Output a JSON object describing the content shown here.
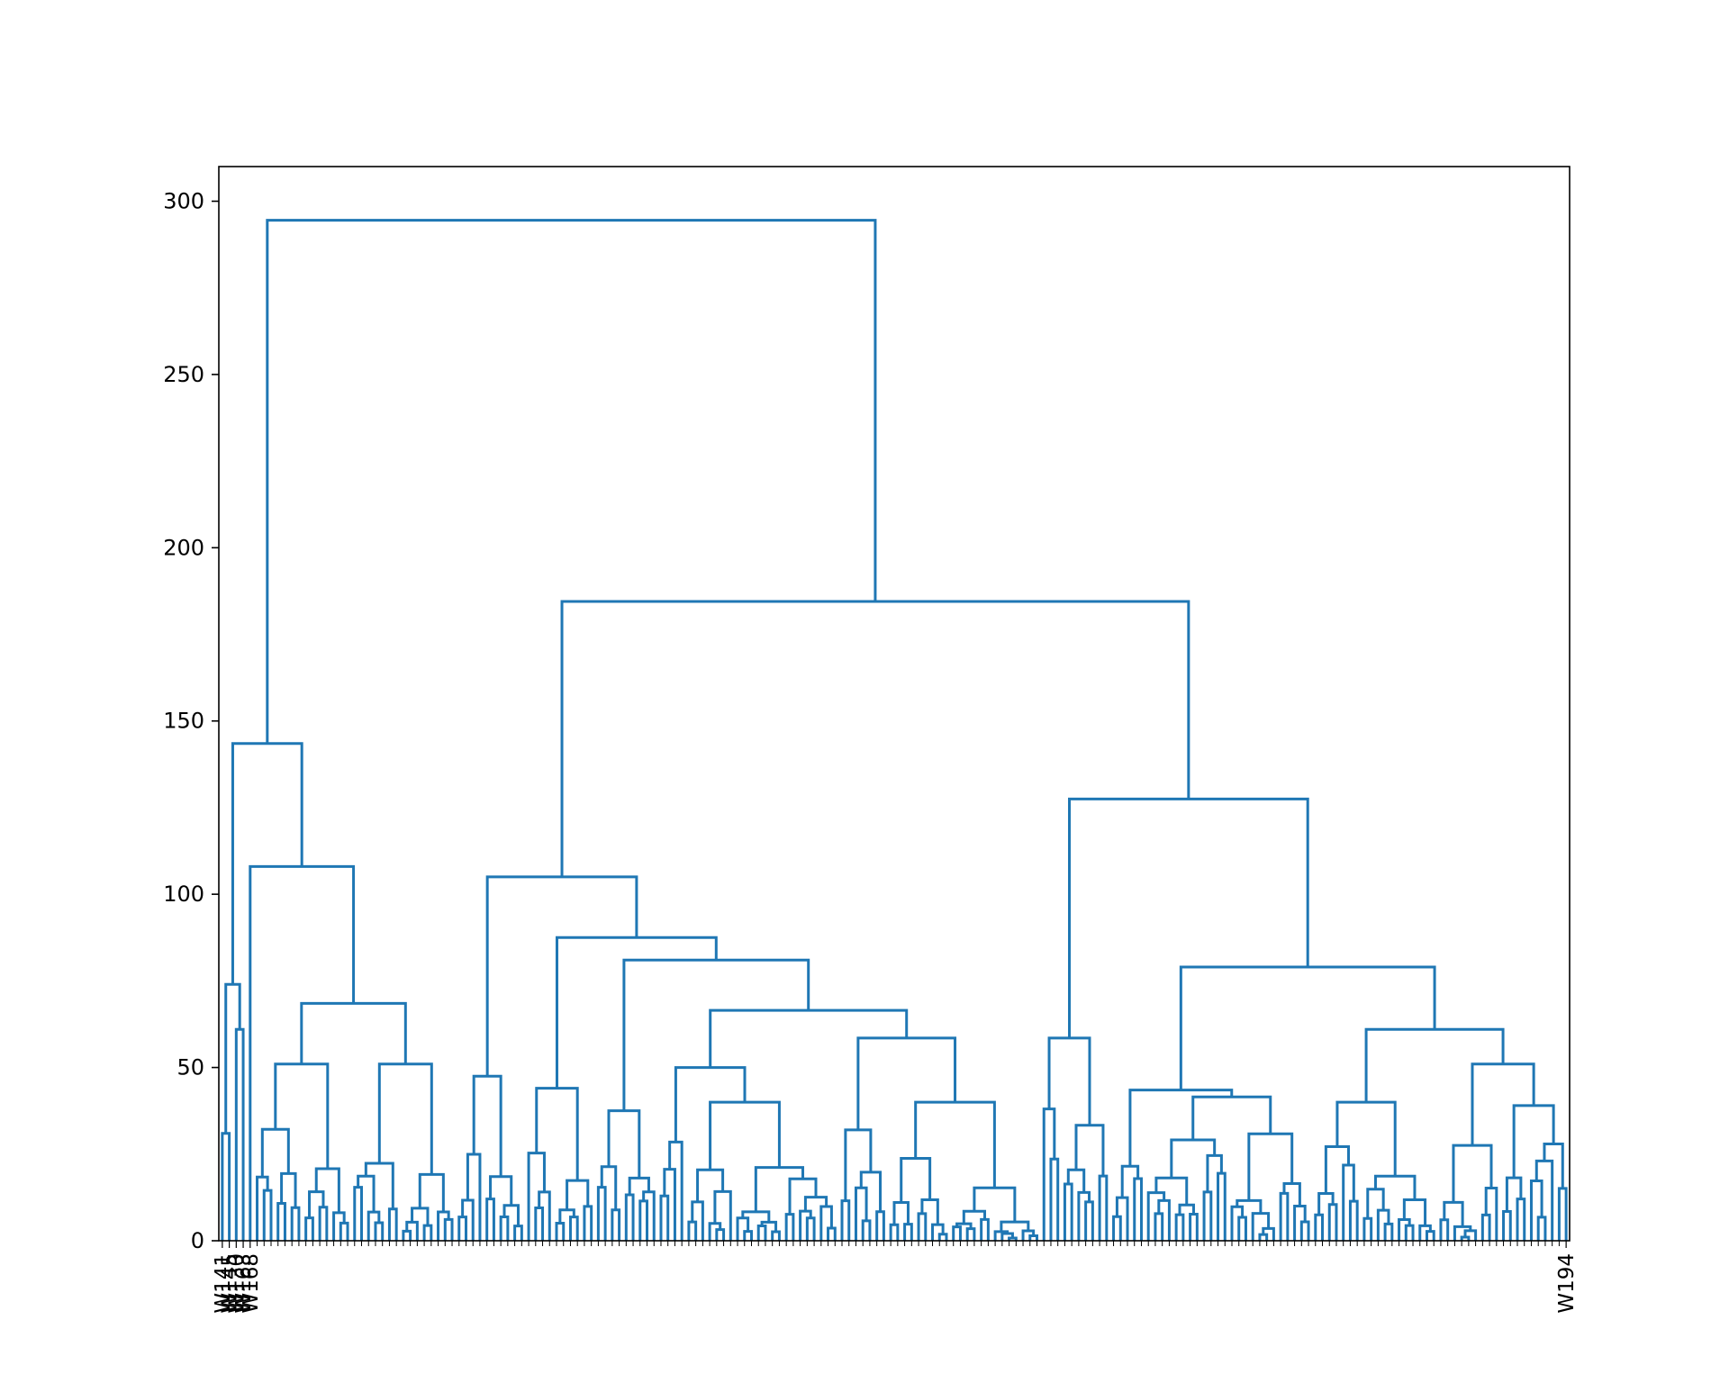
{
  "chart_data": {
    "type": "dendrogram",
    "title": "",
    "xlabel": "",
    "ylabel": "",
    "ylim": [
      0,
      310
    ],
    "y_ticks": [
      0,
      50,
      100,
      150,
      200,
      250,
      300
    ],
    "y_tick_labels": [
      "0",
      "50",
      "100",
      "150",
      "200",
      "250",
      "300"
    ],
    "grid": false,
    "legend": "none",
    "link_color": "#1f77b4",
    "leaf_count": 194,
    "leaf_labels_visible": [
      "W141",
      "W145",
      "W130",
      "W163",
      "W168",
      "W194"
    ],
    "merges": [
      {
        "left": "A",
        "right": "B",
        "height": 294.5
      },
      {
        "left": "A1",
        "right": "A2",
        "height": 143.5
      },
      {
        "left": "A1a",
        "right": "A1b",
        "height": 74
      },
      {
        "left": "A1a-leaf",
        "right": "A1a-leaf2",
        "height": 31
      },
      {
        "left": "A1b-leaf",
        "right": "A1b-leaf2",
        "height": 61
      },
      {
        "left": "A2a",
        "right": "A2b",
        "height": 108
      },
      {
        "left": "A2b1",
        "right": "A2b2",
        "height": 68.5
      },
      {
        "left": "A2b1a",
        "right": "A2b1b",
        "height": 51
      },
      {
        "left": "A2b2a",
        "right": "A2b2b",
        "height": 51
      },
      {
        "left": "B1",
        "right": "B2",
        "height": 184.5
      },
      {
        "left": "B1a",
        "right": "B1b",
        "height": 105
      },
      {
        "left": "B1a-l",
        "right": "B1a-r",
        "height": 47.5
      },
      {
        "left": "B1b1",
        "right": "B1b2",
        "height": 87.5
      },
      {
        "left": "B1b1a",
        "right": "B1b1b",
        "height": 44
      },
      {
        "left": "B1b2a",
        "right": "B1b2b",
        "height": 81
      },
      {
        "left": "B1b2a1",
        "right": "B1b2a2",
        "height": 37.5
      },
      {
        "left": "B1b2b1",
        "right": "B1b2b2",
        "height": 66.5
      },
      {
        "left": "B1b2b1a",
        "right": "B1b2b1b",
        "height": 50
      },
      {
        "left": "B1b2b1b1",
        "right": "B1b2b1b2",
        "height": 40
      },
      {
        "left": "B1b2b2a",
        "right": "B1b2b2b",
        "height": 58.5
      },
      {
        "left": "B1b2b2b1",
        "right": "B1b2b2b2",
        "height": 40
      },
      {
        "left": "B2a",
        "right": "B2b",
        "height": 127.5
      },
      {
        "left": "B2a1",
        "right": "B2a2",
        "height": 58.5
      },
      {
        "left": "B2b1",
        "right": "B2b2",
        "height": 79
      },
      {
        "left": "B2b1a",
        "right": "B2b1b",
        "height": 43.5
      },
      {
        "left": "B2b1b1",
        "right": "B2b1b2",
        "height": 41.5
      },
      {
        "left": "B2b2a",
        "right": "B2b2b",
        "height": 61
      },
      {
        "left": "B2b2a1",
        "right": "B2b2a2",
        "height": 40
      },
      {
        "left": "B2b2b1",
        "right": "B2b2b2",
        "height": 51
      },
      {
        "left": "B2b2b2a",
        "right": "B2b2b2b",
        "height": 39
      }
    ]
  }
}
